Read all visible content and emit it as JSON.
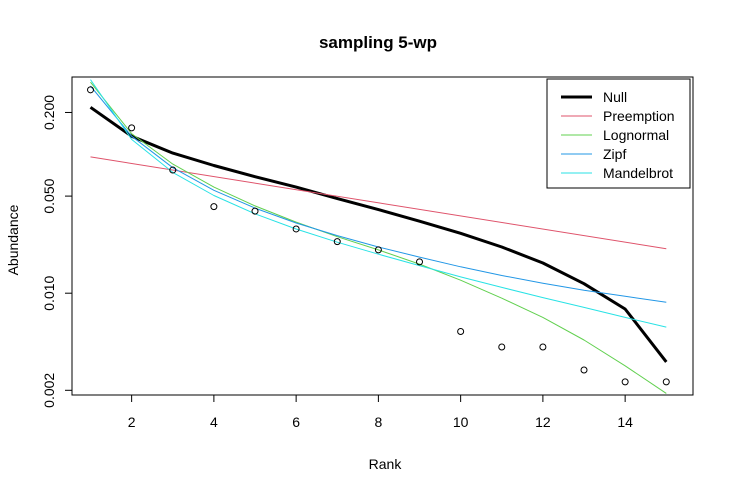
{
  "chart_data": {
    "type": "line",
    "title": "sampling 5-wp",
    "xlabel": "Rank",
    "ylabel": "Abundance",
    "y_scale": "log",
    "xlim": [
      0.55,
      15.65
    ],
    "ylim": [
      0.00185,
      0.36
    ],
    "x_ticks": [
      2,
      4,
      6,
      8,
      10,
      12,
      14
    ],
    "y_ticks": [
      0.002,
      0.01,
      0.05,
      0.2
    ],
    "y_tick_labels": [
      "0.002",
      "0.010",
      "0.050",
      "0.200"
    ],
    "legend_position": "top-right",
    "grid": false,
    "points": {
      "x": [
        1,
        2,
        3,
        4,
        5,
        6,
        7,
        8,
        9,
        10,
        11,
        12,
        13,
        14,
        15
      ],
      "y": [
        0.291,
        0.155,
        0.077,
        0.042,
        0.039,
        0.029,
        0.0235,
        0.0205,
        0.0168,
        0.0053,
        0.0041,
        0.0041,
        0.0028,
        0.0023,
        0.0023
      ]
    },
    "series": [
      {
        "name": "Null",
        "color": "#000000",
        "width": 3,
        "x": [
          1,
          2,
          3,
          4,
          5,
          6,
          7,
          8,
          9,
          10,
          11,
          12,
          13,
          14,
          15
        ],
        "y": [
          0.218,
          0.135,
          0.102,
          0.083,
          0.069,
          0.058,
          0.048,
          0.04,
          0.033,
          0.027,
          0.0215,
          0.0165,
          0.0117,
          0.0077,
          0.0032
        ]
      },
      {
        "name": "Preemption",
        "color": "#DF536B",
        "width": 1,
        "x": [
          1,
          15
        ],
        "y": [
          0.0958,
          0.0209
        ]
      },
      {
        "name": "Lognormal",
        "color": "#61D04F",
        "width": 1,
        "x": [
          1,
          2,
          3,
          4,
          5,
          6,
          7,
          8,
          9,
          10,
          11,
          12,
          13,
          14,
          15
        ],
        "y": [
          0.33,
          0.141,
          0.085,
          0.058,
          0.0425,
          0.0325,
          0.0255,
          0.0205,
          0.0162,
          0.0124,
          0.0092,
          0.0067,
          0.0046,
          0.003,
          0.0019
        ]
      },
      {
        "name": "Zipf",
        "color": "#2297E6",
        "width": 1,
        "x": [
          1,
          2,
          3,
          4,
          5,
          6,
          7,
          8,
          9,
          10,
          11,
          12,
          13,
          14,
          15
        ],
        "y": [
          0.31,
          0.135,
          0.08,
          0.055,
          0.041,
          0.032,
          0.026,
          0.0215,
          0.0182,
          0.0155,
          0.0134,
          0.0118,
          0.0105,
          0.0095,
          0.0086
        ]
      },
      {
        "name": "Mandelbrot",
        "color": "#28E2E5",
        "width": 1,
        "x": [
          1,
          2,
          3,
          4,
          5,
          6,
          7,
          8,
          9,
          10,
          11,
          12,
          13,
          14,
          15
        ],
        "y": [
          0.345,
          0.128,
          0.074,
          0.0505,
          0.0373,
          0.029,
          0.0233,
          0.0191,
          0.0158,
          0.0131,
          0.011,
          0.0093,
          0.0079,
          0.0067,
          0.0057
        ]
      }
    ]
  }
}
